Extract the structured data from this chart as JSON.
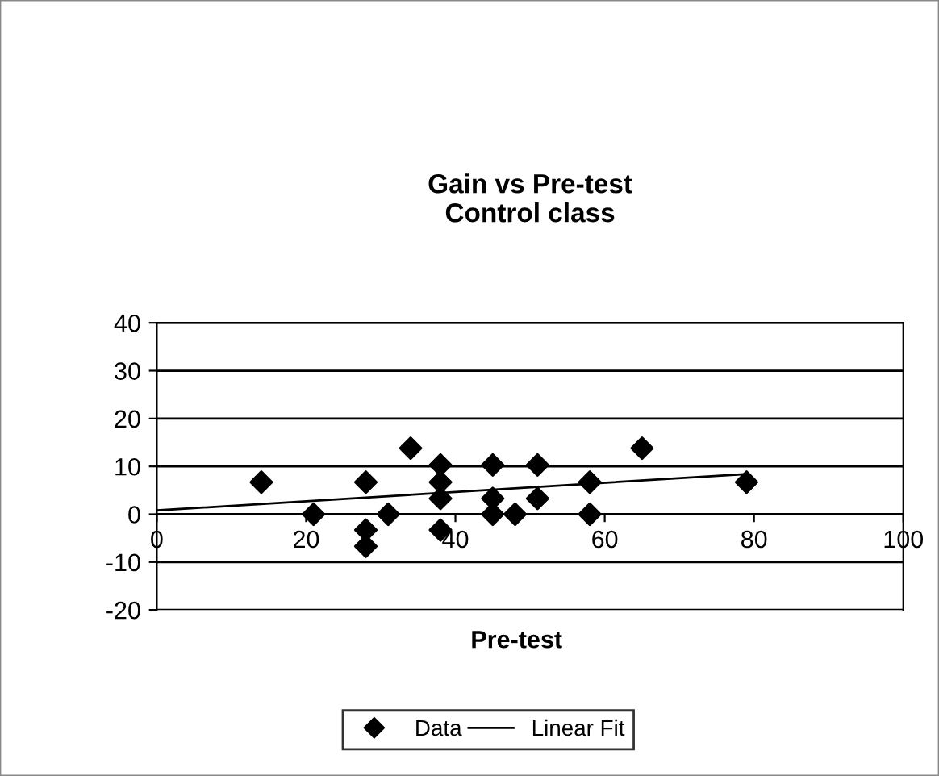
{
  "chart_data": {
    "type": "scatter",
    "title": "Gain vs Pre-test\nControl class",
    "xlabel": "Pre-test",
    "xlim": [
      0,
      100
    ],
    "xticks": [
      0,
      20,
      40,
      60,
      80,
      100
    ],
    "ylim": [
      -20,
      40
    ],
    "yticks": [
      -20,
      -10,
      0,
      10,
      20,
      30,
      40
    ],
    "grid": "y",
    "legend": "bottom",
    "series": [
      {
        "name": "Data",
        "color": "#000000",
        "marker": "diamond",
        "x": [
          14,
          21,
          28,
          28,
          28,
          31,
          34,
          38,
          38,
          38,
          38,
          45,
          45,
          45,
          48,
          51,
          51,
          58,
          58,
          65,
          79
        ],
        "values": [
          6.7,
          0,
          6.7,
          -3.3,
          -6.7,
          0,
          13.8,
          10.3,
          6.7,
          3.3,
          -3.3,
          10.3,
          3.3,
          0,
          0,
          10.3,
          3.3,
          6.7,
          0,
          13.8,
          6.7
        ]
      },
      {
        "name": "Linear Fit",
        "type": "line",
        "color": "#000000",
        "marker": "none",
        "line_style": "solid",
        "x": [
          0,
          79
        ],
        "values": [
          0.8,
          8.4
        ]
      }
    ]
  }
}
